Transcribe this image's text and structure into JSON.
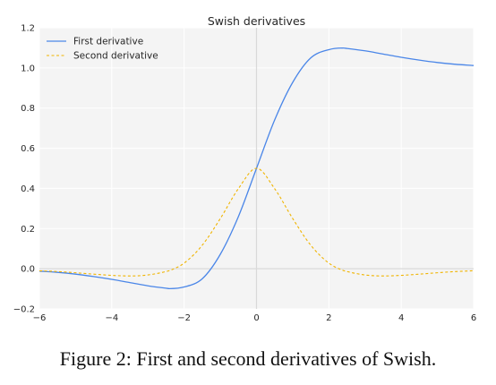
{
  "caption": "Figure 2: First and second derivatives of Swish.",
  "chart_data": {
    "type": "line",
    "title": "Swish derivatives",
    "xlabel": "",
    "ylabel": "",
    "xlim": [
      -6,
      6
    ],
    "ylim": [
      -0.2,
      1.2
    ],
    "x_ticks": [
      -6,
      -4,
      -2,
      0,
      2,
      4,
      6
    ],
    "y_ticks": [
      -0.2,
      0.0,
      0.2,
      0.4,
      0.6,
      0.8,
      1.0,
      1.2
    ],
    "x_tick_labels": [
      "−6",
      "−4",
      "−2",
      "0",
      "2",
      "4",
      "6"
    ],
    "y_tick_labels": [
      "−0.2",
      "0.0",
      "0.2",
      "0.4",
      "0.6",
      "0.8",
      "1.0",
      "1.2"
    ],
    "grid": true,
    "background": "#f4f4f4",
    "grid_color": "#ffffff",
    "zero_axis_color": "#d9d9d9",
    "legend_position": "upper-left",
    "x": [
      -6,
      -5.5,
      -5,
      -4.5,
      -4,
      -3.5,
      -3,
      -2.5,
      -2.4,
      -2,
      -1.5,
      -1,
      -0.5,
      0,
      0.5,
      1,
      1.5,
      2,
      2.4,
      2.5,
      3,
      3.5,
      4,
      4.5,
      5,
      5.5,
      6
    ],
    "series": [
      {
        "name": "First derivative",
        "color": "#4a86e8",
        "style": "solid",
        "values": [
          -0.012,
          -0.018,
          -0.027,
          -0.039,
          -0.053,
          -0.069,
          -0.085,
          -0.097,
          -0.099,
          -0.091,
          -0.05,
          0.072,
          0.26,
          0.5,
          0.74,
          0.928,
          1.05,
          1.091,
          1.099,
          1.097,
          1.085,
          1.069,
          1.053,
          1.039,
          1.027,
          1.018,
          1.012
        ]
      },
      {
        "name": "Second derivative",
        "color": "#f0b400",
        "style": "dashed",
        "values": [
          -0.01,
          -0.014,
          -0.02,
          -0.027,
          -0.033,
          -0.036,
          -0.031,
          -0.014,
          -0.009,
          0.028,
          0.117,
          0.25,
          0.399,
          0.5,
          0.399,
          0.25,
          0.117,
          0.028,
          -0.009,
          -0.014,
          -0.031,
          -0.036,
          -0.033,
          -0.027,
          -0.02,
          -0.014,
          -0.01
        ]
      }
    ]
  }
}
